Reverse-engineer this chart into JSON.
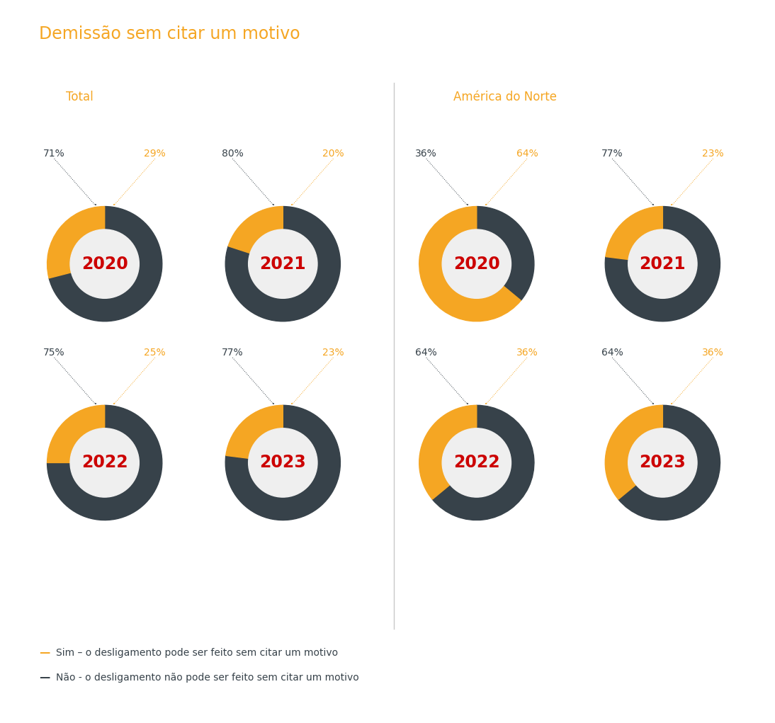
{
  "title": "Demissão sem citar um motivo",
  "title_color": "#F5A623",
  "section_left": "Total",
  "section_right": "América do Norte",
  "section_color": "#F5A623",
  "background_color": "#FFFFFF",
  "inner_color": "#EFEFEF",
  "dark_color": "#37424A",
  "orange_color": "#F5A623",
  "year_color": "#CC0000",
  "charts": [
    {
      "year": "2020",
      "dark_pct": 71,
      "orange_pct": 29,
      "row": 0,
      "col": 0
    },
    {
      "year": "2021",
      "dark_pct": 80,
      "orange_pct": 20,
      "row": 0,
      "col": 1
    },
    {
      "year": "2022",
      "dark_pct": 75,
      "orange_pct": 25,
      "row": 1,
      "col": 0
    },
    {
      "year": "2023",
      "dark_pct": 77,
      "orange_pct": 23,
      "row": 1,
      "col": 1
    },
    {
      "year": "2020",
      "dark_pct": 36,
      "orange_pct": 64,
      "row": 0,
      "col": 2
    },
    {
      "year": "2021",
      "dark_pct": 77,
      "orange_pct": 23,
      "row": 0,
      "col": 3
    },
    {
      "year": "2022",
      "dark_pct": 64,
      "orange_pct": 36,
      "row": 1,
      "col": 2
    },
    {
      "year": "2023",
      "dark_pct": 64,
      "orange_pct": 36,
      "row": 1,
      "col": 3
    }
  ],
  "legend_sim": "Sim – o desligamento pode ser feito sem citar um motivo",
  "legend_nao": "Não - o desligamento não pode ser feito sem citar um motivo"
}
